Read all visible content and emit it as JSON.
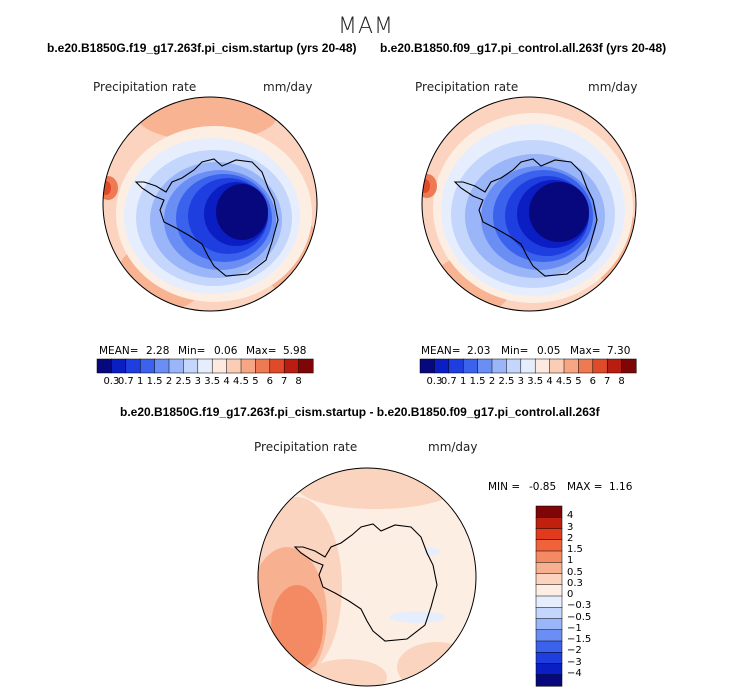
{
  "figure": {
    "season": "MAM"
  },
  "panels": [
    {
      "title": "b.e20.B1850G.f19_g17.263f.pi_cism.startup (yrs 20-48)",
      "field": "Precipitation rate",
      "units": "mm/day",
      "stats": {
        "mean_label": "MEAN=",
        "mean": "2.28",
        "min_label": "Min=",
        "min": "0.06",
        "max_label": "Max=",
        "max": "5.98"
      }
    },
    {
      "title": "b.e20.B1850.f09_g17.pi_control.all.263f (yrs 20-48)",
      "field": "Precipitation rate",
      "units": "mm/day",
      "stats": {
        "mean_label": "MEAN=",
        "mean": "2.03",
        "min_label": "Min=",
        "min": "0.05",
        "max_label": "Max=",
        "max": "7.30"
      }
    }
  ],
  "diff_panel": {
    "title": "b.e20.B1850G.f19_g17.263f.pi_cism.startup - b.e20.B1850.f09_g17.pi_control.all.263f",
    "field": "Precipitation rate",
    "units": "mm/day",
    "stats": {
      "min_label": "MIN =",
      "min": "-0.85",
      "max_label": "MAX =",
      "max": "1.16"
    }
  },
  "colorbars": {
    "abs": {
      "colors": [
        "#08087e",
        "#0b1ec4",
        "#1f3ee0",
        "#3a62ec",
        "#6a8ef4",
        "#9ab5f8",
        "#c4d6fb",
        "#e6eefd",
        "#fde9df",
        "#fbcdb6",
        "#f6a684",
        "#ee7a54",
        "#de4a2a",
        "#b81d10",
        "#7e0606"
      ],
      "ticks": [
        "0.3",
        "0.7",
        "1",
        "1.5",
        "2",
        "2.5",
        "3",
        "3.5",
        "4",
        "4.5",
        "5",
        "6",
        "7",
        "8"
      ]
    },
    "diff": {
      "colors": [
        "#7e0606",
        "#c0210f",
        "#e23a1c",
        "#f0623c",
        "#f48a63",
        "#f8b190",
        "#fbd4bf",
        "#fdeee4",
        "#e6eefd",
        "#c4d6fb",
        "#9ab5f8",
        "#6a8ef4",
        "#3a62ec",
        "#1f3ee0",
        "#0b1ec4",
        "#08087e"
      ],
      "ticks": [
        "4",
        "3",
        "2",
        "1.5",
        "1",
        "0.5",
        "0.3",
        "0",
        "−0.3",
        "−0.5",
        "−1",
        "−1.5",
        "−2",
        "−3",
        "−4"
      ]
    }
  },
  "chart_data": [
    {
      "type": "heatmap",
      "title": "b.e20.B1850G.f19_g17.263f.pi_cism.startup (yrs 20-48)",
      "subtitle": "Precipitation rate",
      "units": "mm/day",
      "projection": "south-polar-stereographic",
      "levels": [
        0.3,
        0.7,
        1,
        1.5,
        2,
        2.5,
        3,
        3.5,
        4,
        4.5,
        5,
        6,
        7,
        8
      ],
      "mean": 2.28,
      "min": 0.06,
      "max": 5.98
    },
    {
      "type": "heatmap",
      "title": "b.e20.B1850.f09_g17.pi_control.all.263f (yrs 20-48)",
      "subtitle": "Precipitation rate",
      "units": "mm/day",
      "projection": "south-polar-stereographic",
      "levels": [
        0.3,
        0.7,
        1,
        1.5,
        2,
        2.5,
        3,
        3.5,
        4,
        4.5,
        5,
        6,
        7,
        8
      ],
      "mean": 2.03,
      "min": 0.05,
      "max": 7.3
    },
    {
      "type": "heatmap",
      "title": "b.e20.B1850G.f19_g17.263f.pi_cism.startup - b.e20.B1850.f09_g17.pi_control.all.263f",
      "subtitle": "Precipitation rate",
      "units": "mm/day",
      "projection": "south-polar-stereographic",
      "levels": [
        -4,
        -3,
        -2,
        -1.5,
        -1,
        -0.5,
        -0.3,
        0,
        0.3,
        0.5,
        1,
        1.5,
        2,
        3,
        4
      ],
      "min": -0.85,
      "max": 1.16
    }
  ]
}
